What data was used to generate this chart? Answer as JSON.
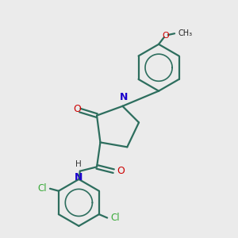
{
  "background_color": "#ebebeb",
  "bond_color": "#2d6e5e",
  "N_color": "#1a00cc",
  "O_color": "#cc0000",
  "Cl_color": "#3aaa3a",
  "line_width": 1.6,
  "figsize": [
    3.0,
    3.0
  ],
  "dpi": 100,
  "xlim": [
    0,
    10
  ],
  "ylim": [
    0,
    10
  ]
}
